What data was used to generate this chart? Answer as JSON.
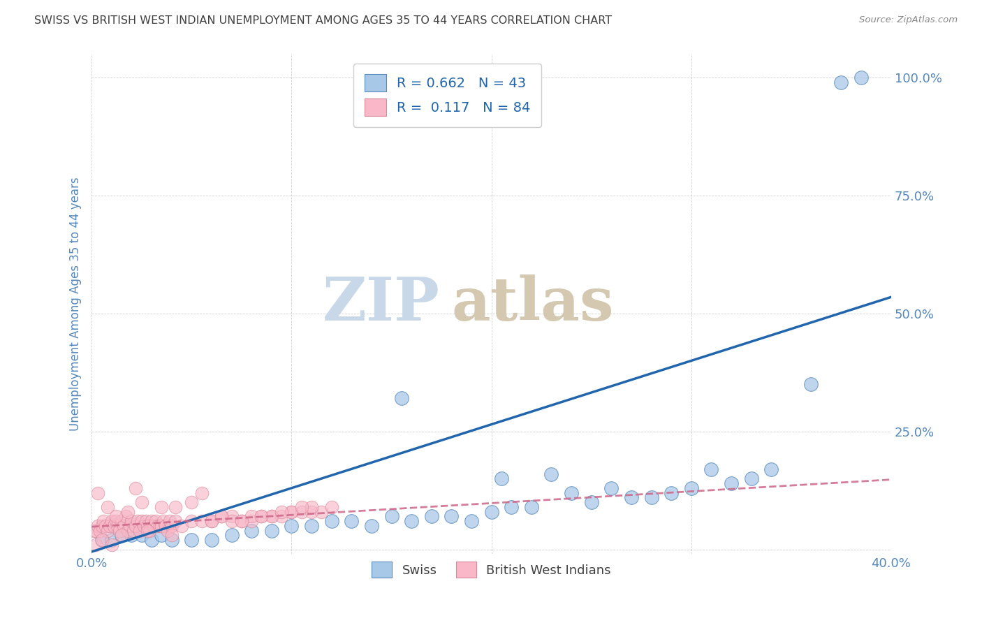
{
  "title": "SWISS VS BRITISH WEST INDIAN UNEMPLOYMENT AMONG AGES 35 TO 44 YEARS CORRELATION CHART",
  "source": "Source: ZipAtlas.com",
  "ylabel": "Unemployment Among Ages 35 to 44 years",
  "xlim": [
    0.0,
    0.4
  ],
  "ylim": [
    -0.01,
    1.05
  ],
  "yticks": [
    0.0,
    0.25,
    0.5,
    0.75,
    1.0
  ],
  "ytick_labels": [
    "",
    "25.0%",
    "50.0%",
    "75.0%",
    "100.0%"
  ],
  "xticks": [
    0.0,
    0.1,
    0.2,
    0.3,
    0.4
  ],
  "xtick_labels": [
    "0.0%",
    "",
    "",
    "",
    "40.0%"
  ],
  "swiss_R": 0.662,
  "swiss_N": 43,
  "bwi_R": 0.117,
  "bwi_N": 84,
  "swiss_color": "#a8c8e8",
  "swiss_edge_color": "#5588bb",
  "swiss_line_color": "#2166ac",
  "bwi_color": "#f8b8c8",
  "bwi_edge_color": "#d88898",
  "bwi_line_color": "#cc6688",
  "watermark_zip_color": "#c8d8e8",
  "watermark_atlas_color": "#d4c8b0",
  "background_color": "#ffffff",
  "grid_color": "#bbbbbb",
  "title_color": "#404040",
  "axis_label_color": "#5588bb",
  "source_color": "#888888",
  "legend_label_color": "#2166ac",
  "bottom_legend_color": "#404040",
  "swiss_line_x0": 0.0,
  "swiss_line_y0": -0.005,
  "swiss_line_x1": 0.4,
  "swiss_line_y1": 0.535,
  "bwi_line_x0": 0.0,
  "bwi_line_y0": 0.048,
  "bwi_line_x1": 0.4,
  "bwi_line_y1": 0.148,
  "swiss_scatter_x": [
    0.005,
    0.01,
    0.015,
    0.02,
    0.025,
    0.03,
    0.035,
    0.04,
    0.05,
    0.06,
    0.07,
    0.08,
    0.09,
    0.1,
    0.11,
    0.12,
    0.13,
    0.14,
    0.15,
    0.155,
    0.16,
    0.17,
    0.18,
    0.19,
    0.2,
    0.205,
    0.21,
    0.22,
    0.23,
    0.24,
    0.25,
    0.26,
    0.27,
    0.28,
    0.29,
    0.3,
    0.31,
    0.32,
    0.33,
    0.34,
    0.36,
    0.375,
    0.385
  ],
  "swiss_scatter_y": [
    0.02,
    0.02,
    0.03,
    0.03,
    0.03,
    0.02,
    0.03,
    0.02,
    0.02,
    0.02,
    0.03,
    0.04,
    0.04,
    0.05,
    0.05,
    0.06,
    0.06,
    0.05,
    0.07,
    0.32,
    0.06,
    0.07,
    0.07,
    0.06,
    0.08,
    0.15,
    0.09,
    0.09,
    0.16,
    0.12,
    0.1,
    0.13,
    0.11,
    0.11,
    0.12,
    0.13,
    0.17,
    0.14,
    0.15,
    0.17,
    0.35,
    0.99,
    1.0
  ],
  "bwi_scatter_x": [
    0.001,
    0.002,
    0.003,
    0.004,
    0.005,
    0.006,
    0.007,
    0.008,
    0.009,
    0.01,
    0.011,
    0.012,
    0.013,
    0.014,
    0.015,
    0.016,
    0.017,
    0.018,
    0.019,
    0.02,
    0.021,
    0.022,
    0.023,
    0.024,
    0.025,
    0.026,
    0.027,
    0.028,
    0.029,
    0.03,
    0.031,
    0.032,
    0.033,
    0.034,
    0.035,
    0.036,
    0.037,
    0.038,
    0.039,
    0.04,
    0.042,
    0.045,
    0.05,
    0.055,
    0.06,
    0.065,
    0.07,
    0.075,
    0.08,
    0.085,
    0.09,
    0.095,
    0.1,
    0.105,
    0.11,
    0.115,
    0.12,
    0.003,
    0.008,
    0.012,
    0.018,
    0.022,
    0.028,
    0.035,
    0.042,
    0.05,
    0.06,
    0.07,
    0.08,
    0.09,
    0.1,
    0.11,
    0.015,
    0.025,
    0.04,
    0.055,
    0.065,
    0.075,
    0.085,
    0.095,
    0.105,
    0.002,
    0.005,
    0.01
  ],
  "bwi_scatter_y": [
    0.04,
    0.04,
    0.05,
    0.04,
    0.05,
    0.06,
    0.05,
    0.04,
    0.05,
    0.06,
    0.05,
    0.06,
    0.05,
    0.04,
    0.06,
    0.05,
    0.07,
    0.04,
    0.05,
    0.06,
    0.04,
    0.05,
    0.06,
    0.04,
    0.06,
    0.05,
    0.06,
    0.05,
    0.04,
    0.06,
    0.05,
    0.06,
    0.05,
    0.05,
    0.05,
    0.06,
    0.05,
    0.04,
    0.06,
    0.05,
    0.06,
    0.05,
    0.06,
    0.06,
    0.06,
    0.07,
    0.07,
    0.06,
    0.06,
    0.07,
    0.07,
    0.07,
    0.08,
    0.08,
    0.08,
    0.08,
    0.09,
    0.12,
    0.09,
    0.07,
    0.08,
    0.13,
    0.04,
    0.09,
    0.09,
    0.1,
    0.06,
    0.06,
    0.07,
    0.07,
    0.08,
    0.09,
    0.03,
    0.1,
    0.03,
    0.12,
    0.07,
    0.06,
    0.07,
    0.08,
    0.09,
    0.01,
    0.02,
    0.01
  ]
}
